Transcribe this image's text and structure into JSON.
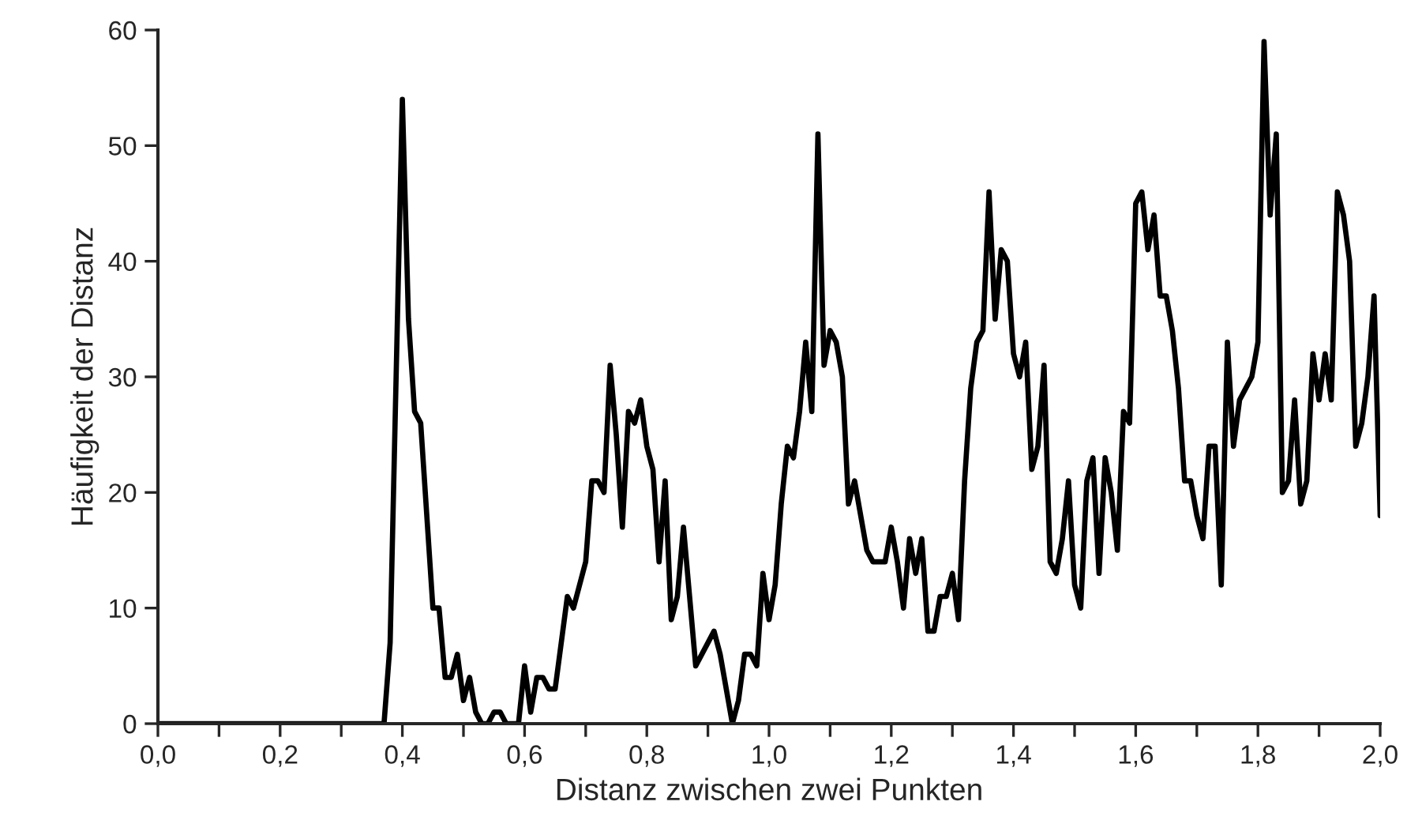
{
  "chart_data": {
    "type": "line",
    "xlabel": "Distanz zwischen zwei Punkten",
    "ylabel": "Häufigkeit der Distanz",
    "x": [
      0,
      0.37,
      0.38,
      0.4,
      0.41,
      0.42,
      0.43,
      0.45,
      0.46,
      0.47,
      0.48,
      0.49,
      0.5,
      0.51,
      0.52,
      0.53,
      0.54,
      0.55,
      0.56,
      0.57,
      0.59,
      0.6,
      0.61,
      0.62,
      0.63,
      0.64,
      0.65,
      0.67,
      0.68,
      0.7,
      0.71,
      0.72,
      0.73,
      0.74,
      0.75,
      0.76,
      0.77,
      0.78,
      0.79,
      0.8,
      0.81,
      0.82,
      0.83,
      0.84,
      0.85,
      0.86,
      0.87,
      0.88,
      0.9,
      0.91,
      0.92,
      0.94,
      0.95,
      0.96,
      0.97,
      0.98,
      0.99,
      1.0,
      1.01,
      1.02,
      1.03,
      1.04,
      1.05,
      1.06,
      1.07,
      1.08,
      1.09,
      1.1,
      1.11,
      1.12,
      1.13,
      1.14,
      1.15,
      1.16,
      1.17,
      1.18,
      1.19,
      1.2,
      1.21,
      1.22,
      1.23,
      1.24,
      1.25,
      1.26,
      1.27,
      1.28,
      1.29,
      1.3,
      1.31,
      1.32,
      1.33,
      1.34,
      1.35,
      1.36,
      1.37,
      1.38,
      1.39,
      1.4,
      1.41,
      1.42,
      1.43,
      1.44,
      1.45,
      1.46,
      1.47,
      1.48,
      1.49,
      1.5,
      1.51,
      1.52,
      1.53,
      1.54,
      1.55,
      1.56,
      1.57,
      1.58,
      1.59,
      1.6,
      1.61,
      1.62,
      1.63,
      1.64,
      1.65,
      1.66,
      1.67,
      1.68,
      1.69,
      1.7,
      1.71,
      1.72,
      1.73,
      1.74,
      1.75,
      1.76,
      1.77,
      1.78,
      1.79,
      1.8,
      1.81,
      1.82,
      1.83,
      1.84,
      1.85,
      1.86,
      1.87,
      1.88,
      1.89,
      1.9,
      1.91,
      1.92,
      1.93,
      1.94,
      1.95,
      1.96,
      1.97,
      1.98,
      1.99,
      2.0
    ],
    "series": [
      {
        "color": "#000000",
        "values": [
          0,
          0,
          7,
          54,
          35,
          27,
          26,
          10,
          10,
          4,
          4,
          6,
          2,
          4,
          1,
          0,
          0,
          1,
          1,
          0,
          0,
          5,
          1,
          4,
          4,
          3,
          3,
          11,
          10,
          14,
          21,
          21,
          20,
          31,
          25,
          17,
          27,
          26,
          28,
          24,
          22,
          14,
          21,
          9,
          11,
          17,
          11,
          5,
          7,
          8,
          6,
          0,
          2,
          6,
          6,
          5,
          13,
          9,
          12,
          19,
          24,
          23,
          27,
          33,
          27,
          51,
          31,
          34,
          33,
          30,
          19,
          21,
          18,
          15,
          14,
          14,
          14,
          17,
          14,
          10,
          16,
          13,
          16,
          8,
          8,
          11,
          11,
          13,
          9,
          21,
          29,
          33,
          34,
          46,
          35,
          41,
          40,
          32,
          30,
          33,
          22,
          24,
          31,
          14,
          13,
          16,
          21,
          12,
          10,
          21,
          23,
          13,
          23,
          20,
          15,
          27,
          26,
          45,
          46,
          41,
          44,
          37,
          37,
          34,
          29,
          21,
          21,
          18,
          16,
          24,
          24,
          12,
          33,
          24,
          28,
          29,
          30,
          33,
          59,
          44,
          51,
          20,
          21,
          28,
          19,
          21,
          32,
          28,
          32,
          28,
          46,
          44,
          40,
          24,
          26,
          30,
          37,
          18
        ]
      }
    ],
    "xlim": [
      0,
      2.0
    ],
    "ylim": [
      0,
      60
    ],
    "xticks": [
      {
        "value": 0,
        "label": "0,0"
      },
      {
        "value": 0.1,
        "label": null
      },
      {
        "value": 0.2,
        "label": "0,2"
      },
      {
        "value": 0.3,
        "label": null
      },
      {
        "value": 0.4,
        "label": "0,4"
      },
      {
        "value": 0.5,
        "label": null
      },
      {
        "value": 0.6,
        "label": "0,6"
      },
      {
        "value": 0.7,
        "label": null
      },
      {
        "value": 0.8,
        "label": "0,8"
      },
      {
        "value": 0.9,
        "label": null
      },
      {
        "value": 1.0,
        "label": "1,0"
      },
      {
        "value": 1.1,
        "label": null
      },
      {
        "value": 1.2,
        "label": "1,2"
      },
      {
        "value": 1.3,
        "label": null
      },
      {
        "value": 1.4,
        "label": "1,4"
      },
      {
        "value": 1.5,
        "label": null
      },
      {
        "value": 1.6,
        "label": "1,6"
      },
      {
        "value": 1.7,
        "label": null
      },
      {
        "value": 1.8,
        "label": "1,8"
      },
      {
        "value": 1.9,
        "label": null
      },
      {
        "value": 2.0,
        "label": "2,0"
      }
    ],
    "yticks": [
      0,
      10,
      20,
      30,
      40,
      50,
      60
    ],
    "grid": false,
    "legend": false,
    "marker": "none",
    "line_style": "solid"
  }
}
